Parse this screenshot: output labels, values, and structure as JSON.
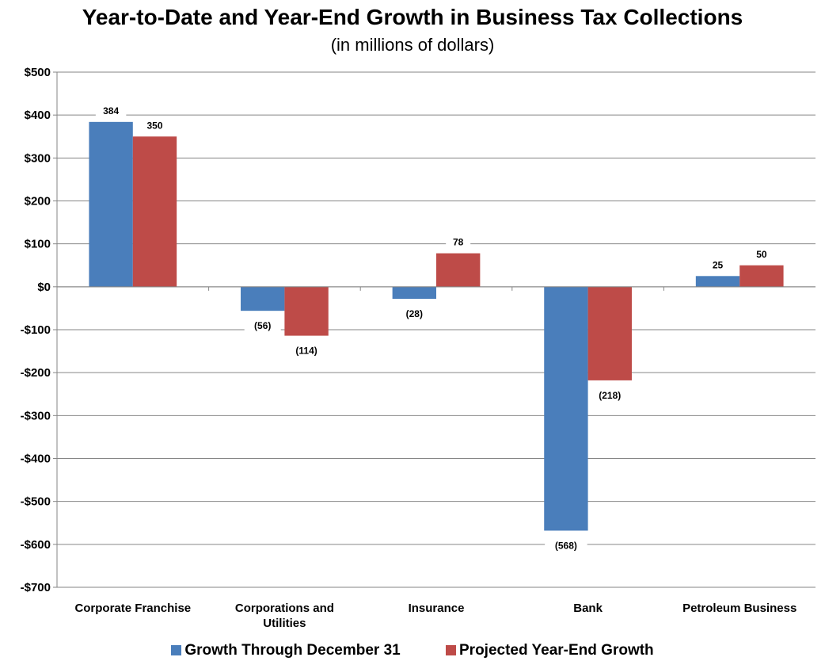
{
  "chart_data": {
    "type": "bar",
    "title": "Year-to-Date and Year-End Growth in Business Tax Collections",
    "subtitle": "(in millions of dollars)",
    "categories": [
      "Corporate Franchise",
      "Corporations and Utilities",
      "Insurance",
      "Bank",
      "Petroleum Business"
    ],
    "category_lines": [
      [
        "Corporate Franchise"
      ],
      [
        "Corporations and",
        "Utilities"
      ],
      [
        "Insurance"
      ],
      [
        "Bank"
      ],
      [
        "Petroleum Business"
      ]
    ],
    "series": [
      {
        "name": "Growth Through December 31",
        "color": "#4a7ebb",
        "values": [
          384,
          -56,
          -28,
          -568,
          25
        ],
        "labels": [
          "384",
          "(56)",
          "(28)",
          "(568)",
          "25"
        ]
      },
      {
        "name": "Projected Year-End Growth",
        "color": "#be4b48",
        "values": [
          350,
          -114,
          78,
          -218,
          50
        ],
        "labels": [
          "350",
          "(114)",
          "78",
          "(218)",
          "50"
        ]
      }
    ],
    "ylim": [
      -700,
      500
    ],
    "ytick_values": [
      500,
      400,
      300,
      200,
      100,
      0,
      -100,
      -200,
      -300,
      -400,
      -500,
      -600,
      -700
    ],
    "ytick_labels": [
      "$500",
      "$400",
      "$300",
      "$200",
      "$100",
      "$0",
      "-$100",
      "-$200",
      "-$300",
      "-$400",
      "-$500",
      "-$600",
      "-$700"
    ],
    "grid": true,
    "legend_position": "bottom",
    "xlabel": "",
    "ylabel": ""
  }
}
